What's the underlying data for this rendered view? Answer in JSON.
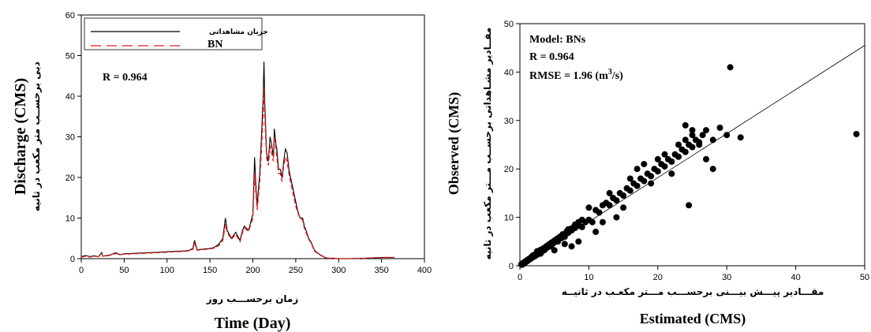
{
  "chart_data": [
    {
      "type": "line",
      "xlabel": "Time (Day)",
      "xlabel_fa": "زمان برحســـب روز",
      "ylabel": "Discharge  (CMS)",
      "ylabel_fa": "دبی برحســب متر مکعب در ثانیه",
      "xlim": [
        0,
        400
      ],
      "ylim": [
        0,
        60
      ],
      "xticks": [
        "0",
        "50",
        "100",
        "150",
        "200",
        "250",
        "300",
        "350",
        "400"
      ],
      "yticks": [
        "0",
        "10",
        "20",
        "30",
        "40",
        "50",
        "60"
      ],
      "annotation": "R = 0.964",
      "legend_position": "top-left",
      "series": [
        {
          "name": "جریان مشاهداتی",
          "color": "#000000",
          "x": [
            0,
            5,
            10,
            15,
            20,
            24,
            25,
            30,
            35,
            40,
            45,
            50,
            60,
            70,
            80,
            90,
            100,
            110,
            120,
            125,
            130,
            132,
            135,
            140,
            145,
            150,
            155,
            160,
            165,
            168,
            170,
            175,
            180,
            185,
            188,
            190,
            195,
            200,
            202,
            203,
            205,
            208,
            210,
            212,
            213,
            214,
            216,
            218,
            220,
            222,
            224,
            225,
            227,
            228,
            230,
            232,
            234,
            236,
            238,
            240,
            242,
            244,
            246,
            248,
            250,
            252,
            255,
            258,
            260,
            262,
            265,
            268,
            270,
            272,
            275,
            278,
            280,
            285,
            290,
            295,
            300,
            310,
            330,
            350,
            365
          ],
          "y": [
            0.5,
            0.8,
            0.5,
            0.7,
            0.5,
            1.5,
            0.6,
            0.8,
            1.0,
            1.5,
            1.0,
            1.2,
            1.3,
            1.4,
            1.5,
            1.6,
            1.7,
            1.8,
            1.9,
            2.0,
            2.5,
            4.5,
            2.2,
            2.3,
            2.4,
            2.5,
            2.8,
            3.5,
            5.0,
            10.0,
            7.0,
            5.0,
            6.5,
            4.5,
            7.0,
            8.0,
            7.0,
            11.0,
            25.0,
            20.0,
            13.0,
            21.0,
            30.0,
            40.0,
            48.5,
            38.0,
            26.0,
            24.0,
            30.0,
            28.0,
            25.0,
            32.0,
            28.0,
            27.0,
            22.0,
            22.0,
            20.0,
            24.0,
            27.0,
            26.0,
            22.0,
            20.0,
            18.0,
            16.0,
            14.0,
            12.0,
            10.0,
            10.0,
            8.0,
            7.0,
            5.0,
            4.0,
            3.0,
            2.0,
            1.5,
            1.0,
            0.8,
            0.2,
            0.1,
            0.1,
            0.0,
            0.0,
            0.1,
            0.3,
            0.3
          ]
        },
        {
          "name": "BN",
          "color": "#e31a1c",
          "x": [
            0,
            5,
            10,
            15,
            20,
            24,
            25,
            30,
            35,
            40,
            45,
            50,
            60,
            70,
            80,
            90,
            100,
            110,
            120,
            125,
            130,
            132,
            135,
            140,
            145,
            150,
            155,
            160,
            165,
            168,
            170,
            175,
            180,
            185,
            188,
            190,
            195,
            200,
            202,
            203,
            205,
            208,
            210,
            212,
            213,
            214,
            216,
            218,
            220,
            222,
            224,
            225,
            227,
            228,
            230,
            232,
            234,
            236,
            238,
            240,
            242,
            244,
            246,
            248,
            250,
            252,
            255,
            258,
            260,
            262,
            265,
            268,
            270,
            272,
            275,
            278,
            280,
            285,
            290,
            295,
            300,
            310,
            330,
            350,
            365
          ],
          "y": [
            0.4,
            0.6,
            0.4,
            0.6,
            0.5,
            1.2,
            0.6,
            0.7,
            0.9,
            1.3,
            1.0,
            1.1,
            1.2,
            1.3,
            1.4,
            1.5,
            1.6,
            1.7,
            1.8,
            1.9,
            2.3,
            3.8,
            2.1,
            2.2,
            2.3,
            2.4,
            2.6,
            3.2,
            4.5,
            8.5,
            6.5,
            4.8,
            6.0,
            4.2,
            6.5,
            7.5,
            6.8,
            10.0,
            21.0,
            18.0,
            12.0,
            19.0,
            27.0,
            36.0,
            42.0,
            35.0,
            25.0,
            23.0,
            28.0,
            26.0,
            24.0,
            30.0,
            27.0,
            25.0,
            21.0,
            21.0,
            19.0,
            23.0,
            25.0,
            24.0,
            21.0,
            19.0,
            17.0,
            15.0,
            13.0,
            11.5,
            10.0,
            9.5,
            7.5,
            6.5,
            4.8,
            3.8,
            2.8,
            1.8,
            1.4,
            0.9,
            0.7,
            0.2,
            0.1,
            0.1,
            0.0,
            0.0,
            0.1,
            0.3,
            0.3
          ]
        }
      ]
    },
    {
      "type": "scatter",
      "xlabel": "Estimated (CMS)",
      "xlabel_fa": "مقـــادیر پیـــش بیـــنی برحســـب مـــتر مکعـب در ثانیــه",
      "ylabel": "Observed (CMS)",
      "ylabel_fa": "مقــادیر مشـاهداتی برحســب مـــتر مکعب در ثانیه",
      "xlim": [
        0,
        50
      ],
      "ylim": [
        0,
        50
      ],
      "xticks": [
        "0",
        "10",
        "20",
        "30",
        "40",
        "50"
      ],
      "yticks": [
        "0",
        "10",
        "20",
        "30",
        "40",
        "50"
      ],
      "annotations": [
        "Model: BNs",
        "R = 0.964",
        "RMSE = 1.96 (m"
      ],
      "rmse_unit_exp": "3",
      "rmse_unit_tail": "/s)",
      "fit_line": {
        "x": [
          0,
          50
        ],
        "y": [
          0,
          45.5
        ]
      },
      "point_color": "#000000",
      "points": [
        [
          0.2,
          0.3
        ],
        [
          0.3,
          0.2
        ],
        [
          0.4,
          0.5
        ],
        [
          0.5,
          0.4
        ],
        [
          0.6,
          0.7
        ],
        [
          0.7,
          0.6
        ],
        [
          0.8,
          0.9
        ],
        [
          0.9,
          0.8
        ],
        [
          1.0,
          1.1
        ],
        [
          1.1,
          1.0
        ],
        [
          1.2,
          1.3
        ],
        [
          1.3,
          1.2
        ],
        [
          1.4,
          1.5
        ],
        [
          1.5,
          1.4
        ],
        [
          1.6,
          1.7
        ],
        [
          1.7,
          1.6
        ],
        [
          1.8,
          1.9
        ],
        [
          1.9,
          1.8
        ],
        [
          2.0,
          2.2
        ],
        [
          2.2,
          2.0
        ],
        [
          2.4,
          2.6
        ],
        [
          2.5,
          2.3
        ],
        [
          2.7,
          2.9
        ],
        [
          2.9,
          2.7
        ],
        [
          3.0,
          3.3
        ],
        [
          3.2,
          3.0
        ],
        [
          3.4,
          3.6
        ],
        [
          3.6,
          3.3
        ],
        [
          3.8,
          4.0
        ],
        [
          4.0,
          3.8
        ],
        [
          4.2,
          4.4
        ],
        [
          4.4,
          4.2
        ],
        [
          4.6,
          4.8
        ],
        [
          4.8,
          4.6
        ],
        [
          5.0,
          5.2
        ],
        [
          5.2,
          5.0
        ],
        [
          5.4,
          5.6
        ],
        [
          5.6,
          5.4
        ],
        [
          5.8,
          6.0
        ],
        [
          6.0,
          5.7
        ],
        [
          6.2,
          6.5
        ],
        [
          6.5,
          6.2
        ],
        [
          6.8,
          7.1
        ],
        [
          7.0,
          6.8
        ],
        [
          7.3,
          7.6
        ],
        [
          7.5,
          7.3
        ],
        [
          7.8,
          8.0
        ],
        [
          8.0,
          7.8
        ],
        [
          8.3,
          8.5
        ],
        [
          8.6,
          8.3
        ],
        [
          6.5,
          4.5
        ],
        [
          7.5,
          4.0
        ],
        [
          8.5,
          5.0
        ],
        [
          5.0,
          3.2
        ],
        [
          9.0,
          9.5
        ],
        [
          9.5,
          9.0
        ],
        [
          10.0,
          9.5
        ],
        [
          10.5,
          9.0
        ],
        [
          11.0,
          11.5
        ],
        [
          11.5,
          11.0
        ],
        [
          12.0,
          12.5
        ],
        [
          12.5,
          13.0
        ],
        [
          13.0,
          12.5
        ],
        [
          13.5,
          14.0
        ],
        [
          14.0,
          13.5
        ],
        [
          14.5,
          15.0
        ],
        [
          15.0,
          14.5
        ],
        [
          15.5,
          16.0
        ],
        [
          16.0,
          15.5
        ],
        [
          16.5,
          17.0
        ],
        [
          17.0,
          16.5
        ],
        [
          17.5,
          18.0
        ],
        [
          18.0,
          17.5
        ],
        [
          18.5,
          19.0
        ],
        [
          19.0,
          18.5
        ],
        [
          19.5,
          20.0
        ],
        [
          20.0,
          19.5
        ],
        [
          20.5,
          21.0
        ],
        [
          21.0,
          20.5
        ],
        [
          21.5,
          22.0
        ],
        [
          22.0,
          21.5
        ],
        [
          22.5,
          23.0
        ],
        [
          23.0,
          22.5
        ],
        [
          23.5,
          24.0
        ],
        [
          24.0,
          23.5
        ],
        [
          24.5,
          25.0
        ],
        [
          25.0,
          24.5
        ],
        [
          25.5,
          26.0
        ],
        [
          26.0,
          25.5
        ],
        [
          26.5,
          27.0
        ],
        [
          10.0,
          12.0
        ],
        [
          11.0,
          7.0
        ],
        [
          12.0,
          9.0
        ],
        [
          14.0,
          10.0
        ],
        [
          15.0,
          12.0
        ],
        [
          13.0,
          15.0
        ],
        [
          16.0,
          18.0
        ],
        [
          17.0,
          20.0
        ],
        [
          18.0,
          21.0
        ],
        [
          19.0,
          17.0
        ],
        [
          20.0,
          22.0
        ],
        [
          21.0,
          23.0
        ],
        [
          22.0,
          19.0
        ],
        [
          23.0,
          25.0
        ],
        [
          24.0,
          26.0
        ],
        [
          25.0,
          28.0
        ],
        [
          26.0,
          25.0
        ],
        [
          27.0,
          28.0
        ],
        [
          28.0,
          26.0
        ],
        [
          29.0,
          28.5
        ],
        [
          24.0,
          29.0
        ],
        [
          25.0,
          27.0
        ],
        [
          27.0,
          22.0
        ],
        [
          28.0,
          20.0
        ],
        [
          30.0,
          27.0
        ],
        [
          32.0,
          26.5
        ],
        [
          24.5,
          12.5
        ],
        [
          30.5,
          41.0
        ],
        [
          48.8,
          27.2
        ],
        [
          8.0,
          8.5
        ],
        [
          9.0,
          8.0
        ],
        [
          3.0,
          2.5
        ],
        [
          4.5,
          4.0
        ],
        [
          5.5,
          5.0
        ],
        [
          6.5,
          6.0
        ],
        [
          2.5,
          3.0
        ],
        [
          1.8,
          2.0
        ],
        [
          3.5,
          3.2
        ],
        [
          7.0,
          7.5
        ],
        [
          8.5,
          9.0
        ]
      ]
    }
  ]
}
